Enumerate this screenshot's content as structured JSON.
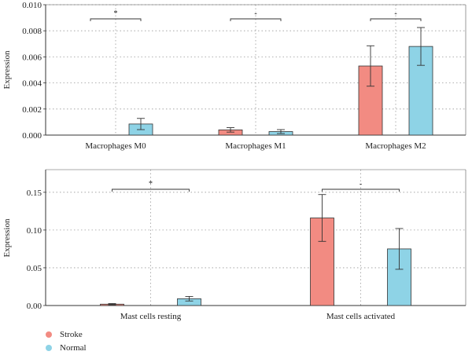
{
  "legend": {
    "stroke_label": "Stroke",
    "normal_label": "Normal",
    "stroke_color": "#F28B82",
    "normal_color": "#8ED3E6"
  },
  "chart_data": [
    {
      "type": "bar",
      "title": "",
      "xlabel": "",
      "ylabel": "Expression",
      "ylim": [
        0,
        0.01
      ],
      "yticks": [
        "0.000",
        "0.002",
        "0.004",
        "0.006",
        "0.008",
        "0.010"
      ],
      "tick_values": [
        0,
        0.002,
        0.004,
        0.006,
        0.008,
        0.01
      ],
      "grid": true,
      "legend_position": "bottom-left",
      "categories": [
        "Macrophages M0",
        "Macrophages M1",
        "Macrophages M2"
      ],
      "series": [
        {
          "name": "Stroke",
          "color": "#F28B82",
          "values": [
            0,
            0.0004,
            0.0053
          ],
          "errors": [
            0,
            0.00017,
            0.00155
          ]
        },
        {
          "name": "Normal",
          "color": "#8ED3E6",
          "values": [
            0.00085,
            0.00027,
            0.0068
          ],
          "errors": [
            0.00043,
            0.00015,
            0.00145
          ]
        }
      ],
      "significance": [
        "*",
        "-",
        "-"
      ]
    },
    {
      "type": "bar",
      "title": "",
      "xlabel": "",
      "ylabel": "Expression",
      "ylim": [
        0,
        0.18
      ],
      "yticks": [
        "0.00",
        "0.05",
        "0.10",
        "0.15"
      ],
      "tick_values": [
        0,
        0.05,
        0.1,
        0.15
      ],
      "grid": true,
      "legend_position": "bottom-left",
      "categories": [
        "Mast cells resting",
        "Mast cells activated"
      ],
      "series": [
        {
          "name": "Stroke",
          "color": "#F28B82",
          "values": [
            0.0018,
            0.116
          ],
          "errors": [
            0.0008,
            0.031
          ]
        },
        {
          "name": "Normal",
          "color": "#8ED3E6",
          "values": [
            0.009,
            0.075
          ],
          "errors": [
            0.003,
            0.027
          ]
        }
      ],
      "significance": [
        "*",
        "-"
      ]
    }
  ]
}
